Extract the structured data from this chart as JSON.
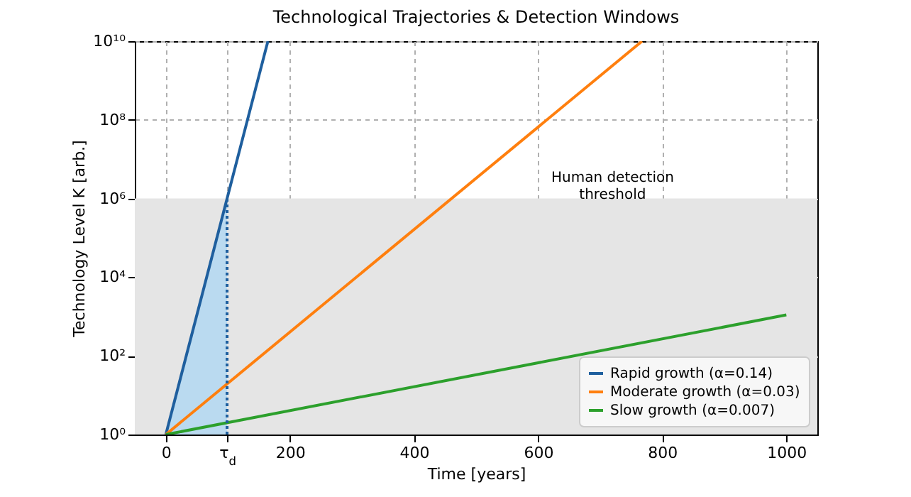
{
  "chart_data": {
    "type": "line",
    "title": "Technological Trajectories & Detection Windows",
    "xlabel": "Time [years]",
    "ylabel": "Technology Level K [arb.]",
    "log": "y",
    "grid": true,
    "legend": "bottom right",
    "xlim": [
      -50,
      1050
    ],
    "xticks": [
      0,
      {
        "value": 98.7,
        "label": "τ$_{d}$"
      },
      200,
      400,
      600,
      800,
      1000
    ],
    "ylim": [
      1,
      10000000000
    ],
    "yticks": [
      {
        "value": 1,
        "label": "10⁰"
      },
      {
        "value": 100,
        "label": "10²"
      },
      {
        "value": 10000,
        "label": "10⁴"
      },
      {
        "value": 1000000,
        "label": "10⁶"
      },
      {
        "value": 100000000,
        "label": "10⁸"
      },
      {
        "value": 10000000000,
        "label": "10¹⁰"
      }
    ],
    "bands": [
      {
        "axis": "y",
        "from": 1,
        "to": 1000000,
        "label": "Human detection threshold",
        "color": "#e5e5e5"
      }
    ],
    "series": [
      {
        "type": "area",
        "color": "#b3d8f2",
        "x": [
          0,
          98.7
        ],
        "values": [
          1,
          1000000
        ]
      },
      {
        "name": "Rapid growth (α=0.14)",
        "color": "#1f5f9e",
        "x": [
          0,
          164.5
        ],
        "values": [
          1,
          10000000000
        ]
      },
      {
        "name": "Moderate growth (α=0.03)",
        "color": "#ff7f0e",
        "x": [
          0,
          767.5
        ],
        "values": [
          1,
          10000000000
        ]
      },
      {
        "name": "Slow growth (α=0.007)",
        "color": "#2ca02c",
        "x": [
          0,
          1000
        ],
        "values": [
          1,
          1097
        ]
      },
      {
        "color": "#1f5f9e",
        "line_style": "dotted",
        "x": [
          98.7,
          98.7
        ],
        "values": [
          1,
          1000000
        ]
      }
    ]
  }
}
